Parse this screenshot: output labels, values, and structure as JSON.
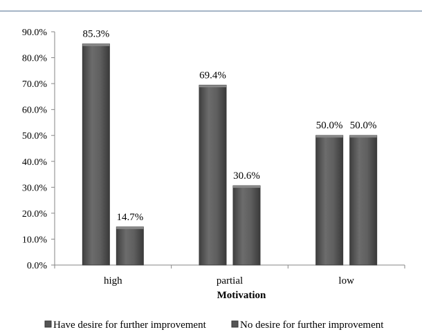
{
  "chart_data": {
    "type": "bar",
    "categories": [
      "high",
      "partial",
      "low"
    ],
    "series": [
      {
        "name": "Have desire for further improvement",
        "values": [
          85.3,
          69.4,
          50.0
        ]
      },
      {
        "name": "No desire for further improvement",
        "values": [
          14.7,
          30.6,
          50.0
        ]
      }
    ],
    "data_labels": [
      [
        "85.3%",
        "69.4%",
        "50.0%"
      ],
      [
        "14.7%",
        "30.6%",
        "50.0%"
      ]
    ],
    "title": "",
    "xlabel": "Motivation",
    "ylabel": "",
    "ylim": [
      0,
      90
    ],
    "yticks": [
      "0.0%",
      "10.0%",
      "20.0%",
      "30.0%",
      "40.0%",
      "50.0%",
      "60.0%",
      "70.0%",
      "80.0%",
      "90.0%"
    ],
    "grid": false,
    "legend_position": "bottom",
    "colors": {
      "bar_fill": "#5a5a5a",
      "bar_edge": "#3a3a3a",
      "axis": "#868686",
      "top_rule": "#4a6a8c"
    }
  }
}
